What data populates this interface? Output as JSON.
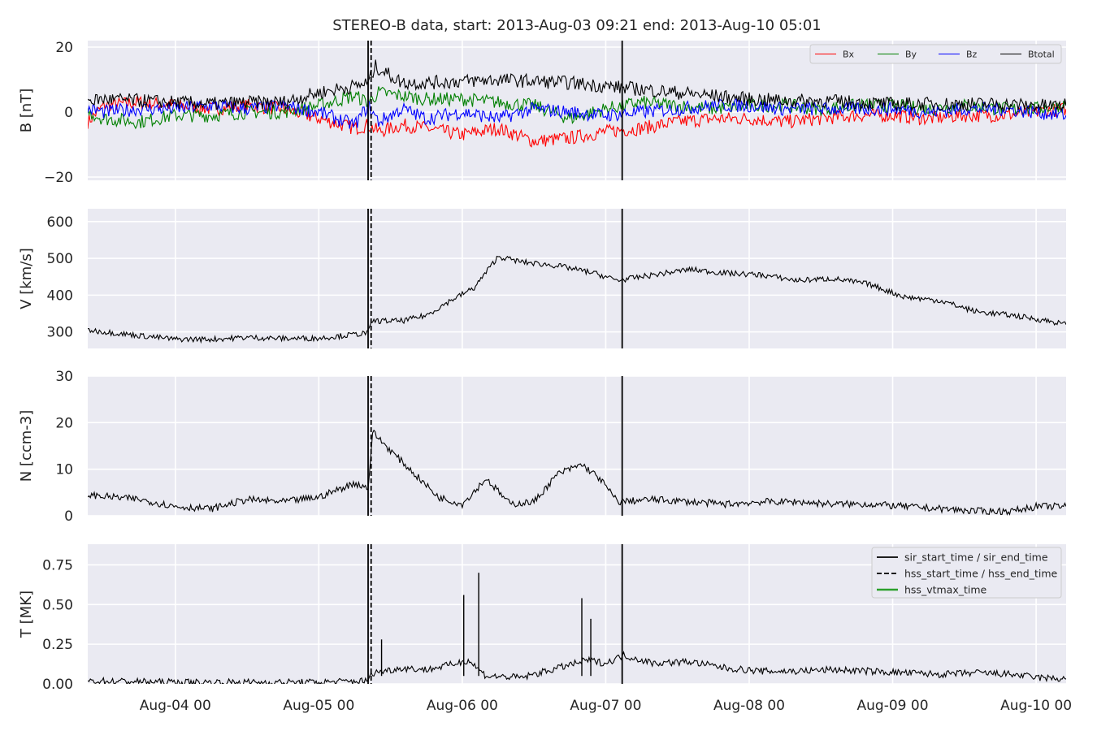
{
  "figure": {
    "title": "STEREO-B data, start: 2013-Aug-03 09:21  end: 2013-Aug-10 05:01"
  },
  "chart_data": {
    "type": "line",
    "time_axis": {
      "start": "2013-08-03 09:21",
      "end": "2013-08-10 05:01",
      "ticks": [
        {
          "label": "Aug-04 00",
          "t": "2013-08-04 00:00"
        },
        {
          "label": "Aug-05 00",
          "t": "2013-08-05 00:00"
        },
        {
          "label": "Aug-06 00",
          "t": "2013-08-06 00:00"
        },
        {
          "label": "Aug-07 00",
          "t": "2013-08-07 00:00"
        },
        {
          "label": "Aug-08 00",
          "t": "2013-08-08 00:00"
        },
        {
          "label": "Aug-09 00",
          "t": "2013-08-09 00:00"
        },
        {
          "label": "Aug-10 00",
          "t": "2013-08-10 00:00"
        }
      ]
    },
    "events": [
      {
        "t": "2013-08-05 08:15",
        "style": "solid"
      },
      {
        "t": "2013-08-05 08:45",
        "style": "dashed"
      },
      {
        "t": "2013-08-07 02:45",
        "style": "solid"
      }
    ],
    "panels": [
      {
        "id": "B",
        "ylabel": "B [nT]",
        "ylim": [
          -21,
          22
        ],
        "yticks": [
          {
            "v": -20,
            "label": "−20"
          },
          {
            "v": 0,
            "label": "0"
          },
          {
            "v": 20,
            "label": "20"
          }
        ],
        "legend": {
          "position": "top-right",
          "ncol": 4
        },
        "series": [
          {
            "name": "Bx",
            "color": "#ff0000",
            "x": [
              "2013-08-03 09:21",
              "2013-08-03 12:00",
              "2013-08-03 18:00",
              "2013-08-04 00:00",
              "2013-08-04 06:00",
              "2013-08-04 12:00",
              "2013-08-04 18:00",
              "2013-08-05 00:00",
              "2013-08-05 06:00",
              "2013-08-05 08:15",
              "2013-08-05 10:00",
              "2013-08-05 14:00",
              "2013-08-05 18:00",
              "2013-08-06 00:00",
              "2013-08-06 06:00",
              "2013-08-06 12:00",
              "2013-08-06 18:00",
              "2013-08-07 00:00",
              "2013-08-07 06:00",
              "2013-08-07 12:00",
              "2013-08-07 18:00",
              "2013-08-08 00:00",
              "2013-08-08 06:00",
              "2013-08-08 12:00",
              "2013-08-08 18:00",
              "2013-08-09 00:00",
              "2013-08-09 06:00",
              "2013-08-09 12:00",
              "2013-08-09 18:00",
              "2013-08-10 00:00",
              "2013-08-10 05:01"
            ],
            "values": [
              -3,
              2,
              3,
              2,
              1,
              2,
              1,
              -2,
              -5,
              -4,
              -6,
              -4,
              -5,
              -7,
              -5,
              -9,
              -8,
              -6,
              -5,
              -3,
              -2,
              -2,
              -3,
              -2,
              -1,
              -1,
              -2,
              -1,
              -1,
              0,
              1
            ]
          },
          {
            "name": "By",
            "color": "#008000",
            "x": [
              "2013-08-03 09:21",
              "2013-08-03 12:00",
              "2013-08-03 18:00",
              "2013-08-04 00:00",
              "2013-08-04 06:00",
              "2013-08-04 12:00",
              "2013-08-04 18:00",
              "2013-08-05 00:00",
              "2013-08-05 06:00",
              "2013-08-05 08:15",
              "2013-08-05 10:00",
              "2013-08-05 14:00",
              "2013-08-05 18:00",
              "2013-08-06 00:00",
              "2013-08-06 06:00",
              "2013-08-06 12:00",
              "2013-08-06 18:00",
              "2013-08-07 00:00",
              "2013-08-07 06:00",
              "2013-08-07 12:00",
              "2013-08-07 18:00",
              "2013-08-08 00:00",
              "2013-08-08 06:00",
              "2013-08-08 12:00",
              "2013-08-08 18:00",
              "2013-08-09 00:00",
              "2013-08-09 06:00",
              "2013-08-09 12:00",
              "2013-08-09 18:00",
              "2013-08-10 00:00",
              "2013-08-10 05:01"
            ],
            "values": [
              0,
              -2,
              -3,
              -1,
              -1,
              0,
              0,
              2,
              5,
              3,
              6,
              5,
              4,
              4,
              3,
              2,
              -2,
              1,
              3,
              2,
              1,
              2,
              2,
              1,
              2,
              2,
              1,
              2,
              1,
              1,
              2
            ]
          },
          {
            "name": "Bz",
            "color": "#0000ff",
            "x": [
              "2013-08-03 09:21",
              "2013-08-03 12:00",
              "2013-08-03 18:00",
              "2013-08-04 00:00",
              "2013-08-04 06:00",
              "2013-08-04 12:00",
              "2013-08-04 18:00",
              "2013-08-05 00:00",
              "2013-08-05 06:00",
              "2013-08-05 08:15",
              "2013-08-05 10:00",
              "2013-08-05 14:00",
              "2013-08-05 18:00",
              "2013-08-06 00:00",
              "2013-08-06 06:00",
              "2013-08-06 12:00",
              "2013-08-06 18:00",
              "2013-08-07 00:00",
              "2013-08-07 06:00",
              "2013-08-07 12:00",
              "2013-08-07 18:00",
              "2013-08-08 00:00",
              "2013-08-08 06:00",
              "2013-08-08 12:00",
              "2013-08-08 18:00",
              "2013-08-09 00:00",
              "2013-08-09 06:00",
              "2013-08-09 12:00",
              "2013-08-09 18:00",
              "2013-08-10 00:00",
              "2013-08-10 05:01"
            ],
            "values": [
              1,
              0,
              1,
              1,
              2,
              1,
              2,
              0,
              -4,
              2,
              -3,
              1,
              -2,
              0,
              -2,
              1,
              0,
              -1,
              0,
              1,
              2,
              2,
              1,
              1,
              1,
              1,
              0,
              1,
              1,
              0,
              -1
            ]
          },
          {
            "name": "Btotal",
            "color": "#000000",
            "x": [
              "2013-08-03 09:21",
              "2013-08-03 12:00",
              "2013-08-03 18:00",
              "2013-08-04 00:00",
              "2013-08-04 06:00",
              "2013-08-04 12:00",
              "2013-08-04 18:00",
              "2013-08-05 00:00",
              "2013-08-05 06:00",
              "2013-08-05 08:15",
              "2013-08-05 09:30",
              "2013-08-05 14:00",
              "2013-08-05 18:00",
              "2013-08-06 00:00",
              "2013-08-06 06:00",
              "2013-08-06 12:00",
              "2013-08-06 18:00",
              "2013-08-07 00:00",
              "2013-08-07 06:00",
              "2013-08-07 12:00",
              "2013-08-07 18:00",
              "2013-08-08 00:00",
              "2013-08-08 06:00",
              "2013-08-08 12:00",
              "2013-08-08 18:00",
              "2013-08-09 00:00",
              "2013-08-09 06:00",
              "2013-08-09 12:00",
              "2013-08-09 18:00",
              "2013-08-10 00:00",
              "2013-08-10 05:01"
            ],
            "values": [
              3.5,
              4,
              3.5,
              3,
              2.5,
              3,
              3,
              6,
              8,
              9,
              14,
              9,
              9,
              9.5,
              10,
              9.5,
              9,
              8,
              7,
              6,
              5,
              4,
              3.5,
              3.5,
              3,
              2.5,
              2.5,
              2.5,
              2.5,
              2,
              2
            ]
          }
        ]
      },
      {
        "id": "V",
        "ylabel": "V [km/s]",
        "ylim": [
          255,
          635
        ],
        "yticks": [
          {
            "v": 300,
            "label": "300"
          },
          {
            "v": 400,
            "label": "400"
          },
          {
            "v": 500,
            "label": "500"
          },
          {
            "v": 600,
            "label": "600"
          }
        ],
        "series": [
          {
            "color": "#000000",
            "x": [
              "2013-08-03 09:21",
              "2013-08-03 18:00",
              "2013-08-04 00:00",
              "2013-08-04 06:00",
              "2013-08-04 12:00",
              "2013-08-04 18:00",
              "2013-08-05 00:00",
              "2013-08-05 06:00",
              "2013-08-05 08:15",
              "2013-08-05 09:00",
              "2013-08-05 14:00",
              "2013-08-05 18:00",
              "2013-08-05 22:00",
              "2013-08-06 02:00",
              "2013-08-06 06:00",
              "2013-08-06 10:00",
              "2013-08-06 16:00",
              "2013-08-06 22:00",
              "2013-08-07 02:00",
              "2013-08-07 08:00",
              "2013-08-07 14:00",
              "2013-08-07 20:00",
              "2013-08-08 02:00",
              "2013-08-08 08:00",
              "2013-08-08 14:00",
              "2013-08-08 20:00",
              "2013-08-09 02:00",
              "2013-08-09 08:00",
              "2013-08-09 14:00",
              "2013-08-09 20:00",
              "2013-08-10 02:00",
              "2013-08-10 05:01"
            ],
            "values": [
              305,
              290,
              280,
              280,
              285,
              282,
              283,
              293,
              298,
              330,
              330,
              345,
              385,
              420,
              505,
              490,
              480,
              460,
              440,
              455,
              470,
              460,
              455,
              440,
              445,
              430,
              395,
              385,
              355,
              345,
              330,
              320
            ]
          }
        ]
      },
      {
        "id": "N",
        "ylabel": "N [ccm-3]",
        "ylim": [
          0,
          30
        ],
        "yticks": [
          {
            "v": 0,
            "label": "0"
          },
          {
            "v": 10,
            "label": "10"
          },
          {
            "v": 20,
            "label": "20"
          },
          {
            "v": 30,
            "label": "30"
          }
        ],
        "series": [
          {
            "color": "#000000",
            "x": [
              "2013-08-03 09:21",
              "2013-08-03 18:00",
              "2013-08-04 00:00",
              "2013-08-04 06:00",
              "2013-08-04 12:00",
              "2013-08-04 18:00",
              "2013-08-05 00:00",
              "2013-08-05 06:00",
              "2013-08-05 08:15",
              "2013-08-05 09:00",
              "2013-08-05 12:00",
              "2013-08-05 16:00",
              "2013-08-05 20:00",
              "2013-08-06 00:00",
              "2013-08-06 04:00",
              "2013-08-06 08:00",
              "2013-08-06 12:00",
              "2013-08-06 16:00",
              "2013-08-06 20:00",
              "2013-08-06 23:00",
              "2013-08-07 02:00",
              "2013-08-07 08:00",
              "2013-08-07 14:00",
              "2013-08-07 20:00",
              "2013-08-08 02:00",
              "2013-08-08 08:00",
              "2013-08-08 14:00",
              "2013-08-08 20:00",
              "2013-08-09 02:00",
              "2013-08-09 08:00",
              "2013-08-09 14:00",
              "2013-08-09 20:00",
              "2013-08-10 00:00",
              "2013-08-10 05:01"
            ],
            "values": [
              4.5,
              3.5,
              2,
              1.5,
              3.5,
              3,
              4,
              7,
              6,
              18,
              14,
              9,
              4,
              2.5,
              8,
              2.5,
              3,
              9,
              11,
              8,
              3,
              3.5,
              3,
              2.5,
              3,
              3,
              2.5,
              2.5,
              2,
              1.5,
              1,
              1,
              2,
              2
            ]
          }
        ]
      },
      {
        "id": "T",
        "ylabel": "T [MK]",
        "ylim": [
          0,
          0.88
        ],
        "yticks": [
          {
            "v": 0,
            "label": "0.00"
          },
          {
            "v": 0.25,
            "label": "0.25"
          },
          {
            "v": 0.5,
            "label": "0.50"
          },
          {
            "v": 0.75,
            "label": "0.75"
          }
        ],
        "legend": {
          "position": "top-right",
          "entries": [
            {
              "label": "sir_start_time / sir_end_time",
              "style": "solid",
              "color": "#000000"
            },
            {
              "label": "hss_start_time / hss_end_time",
              "style": "dashed",
              "color": "#000000"
            },
            {
              "label": "hss_vtmax_time",
              "style": "solid",
              "color": "#2ca02c"
            }
          ]
        },
        "series": [
          {
            "color": "#000000",
            "x": [
              "2013-08-03 09:21",
              "2013-08-04 00:00",
              "2013-08-04 12:00",
              "2013-08-05 00:00",
              "2013-08-05 08:15",
              "2013-08-05 09:00",
              "2013-08-05 14:00",
              "2013-08-05 18:00",
              "2013-08-05 22:00",
              "2013-08-06 01:00",
              "2013-08-06 04:00",
              "2013-08-06 10:00",
              "2013-08-06 16:00",
              "2013-08-06 21:00",
              "2013-08-07 00:00",
              "2013-08-07 03:00",
              "2013-08-07 08:00",
              "2013-08-07 14:00",
              "2013-08-07 20:00",
              "2013-08-08 02:00",
              "2013-08-08 08:00",
              "2013-08-08 14:00",
              "2013-08-08 20:00",
              "2013-08-09 02:00",
              "2013-08-09 08:00",
              "2013-08-09 14:00",
              "2013-08-09 20:00",
              "2013-08-10 00:00",
              "2013-08-10 05:01"
            ],
            "values": [
              0.02,
              0.01,
              0.01,
              0.01,
              0.02,
              0.07,
              0.1,
              0.09,
              0.12,
              0.15,
              0.05,
              0.04,
              0.1,
              0.15,
              0.13,
              0.18,
              0.13,
              0.14,
              0.1,
              0.08,
              0.08,
              0.09,
              0.08,
              0.07,
              0.06,
              0.07,
              0.06,
              0.04,
              0.03
            ]
          }
        ],
        "spikes": [
          {
            "x": "2013-08-05 10:30",
            "y": 0.28
          },
          {
            "x": "2013-08-06 00:15",
            "y": 0.56
          },
          {
            "x": "2013-08-06 02:45",
            "y": 0.7
          },
          {
            "x": "2013-08-06 20:00",
            "y": 0.54
          },
          {
            "x": "2013-08-06 21:30",
            "y": 0.41
          },
          {
            "x": "2013-08-07 02:45",
            "y": 0.64
          }
        ]
      }
    ]
  }
}
